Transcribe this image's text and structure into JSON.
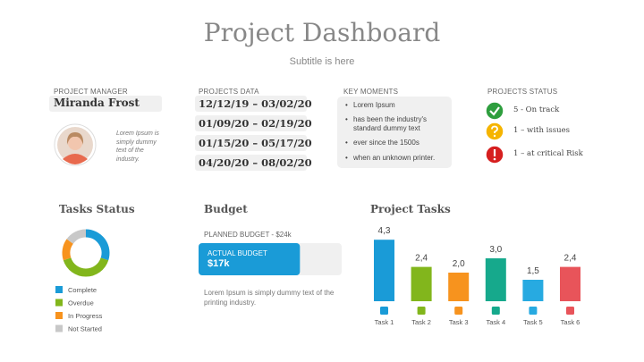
{
  "header": {
    "title": "Project Dashboard",
    "subtitle": "Subtitle is here"
  },
  "manager": {
    "label": "PROJECT MANAGER",
    "name": "Miranda Frost",
    "bio": "Lorem Ipsum is simply dummy text of the industry."
  },
  "projects_data": {
    "label": "PROJECTS DATA",
    "ranges": [
      "12/12/19 – 03/02/20",
      "01/09/20 – 02/19/20",
      "01/15/20 – 05/17/20",
      "04/20/20 – 08/02/20"
    ]
  },
  "key_moments": {
    "label": "KEY MOMENTS",
    "items": [
      "Lorem Ipsum",
      "has been the industry's standard  dummy text",
      "ever since the 1500s",
      "when an unknown printer."
    ]
  },
  "projects_status": {
    "label": "PROJECTS STATUS",
    "items": [
      {
        "text": "5 - On track",
        "color": "#2e9e3e"
      },
      {
        "text": "1 – with issues",
        "color": "#f5b400"
      },
      {
        "text": "1 – at critical Risk",
        "color": "#d61f1f"
      }
    ]
  },
  "budget": {
    "title": "Budget",
    "planned": {
      "label": "PLANNED BUDGET -",
      "value": 24000,
      "value_label": "$24k",
      "color": "#f0f0f0"
    },
    "actual": {
      "label": "ACTUAL BUDGET",
      "value": 17000,
      "value_label": "$17k",
      "color": "#1a9bd7"
    },
    "note": "Lorem Ipsum is simply dummy text of the printing industry."
  },
  "chart_data": [
    {
      "type": "pie",
      "donut": true,
      "title": "Tasks Status",
      "categories": [
        "Complete",
        "Overdue",
        "In Progress",
        "Not Started"
      ],
      "values": [
        30,
        40,
        15,
        15
      ],
      "colors": [
        "#1a9bd7",
        "#82b61c",
        "#f7931e",
        "#c8c8c8"
      ]
    },
    {
      "type": "bar",
      "title": "Project Tasks",
      "categories": [
        "Task 1",
        "Task 2",
        "Task 3",
        "Task 4",
        "Task 5",
        "Task 6"
      ],
      "values": [
        4.3,
        2.4,
        2.0,
        3.0,
        1.5,
        2.4
      ],
      "value_labels": [
        "4,3",
        "2,4",
        "2,0",
        "3,0",
        "1,5",
        "2,4"
      ],
      "colors": [
        "#1a9bd7",
        "#82b61c",
        "#f7931e",
        "#16a98c",
        "#27aae1",
        "#e8545a"
      ]
    }
  ]
}
